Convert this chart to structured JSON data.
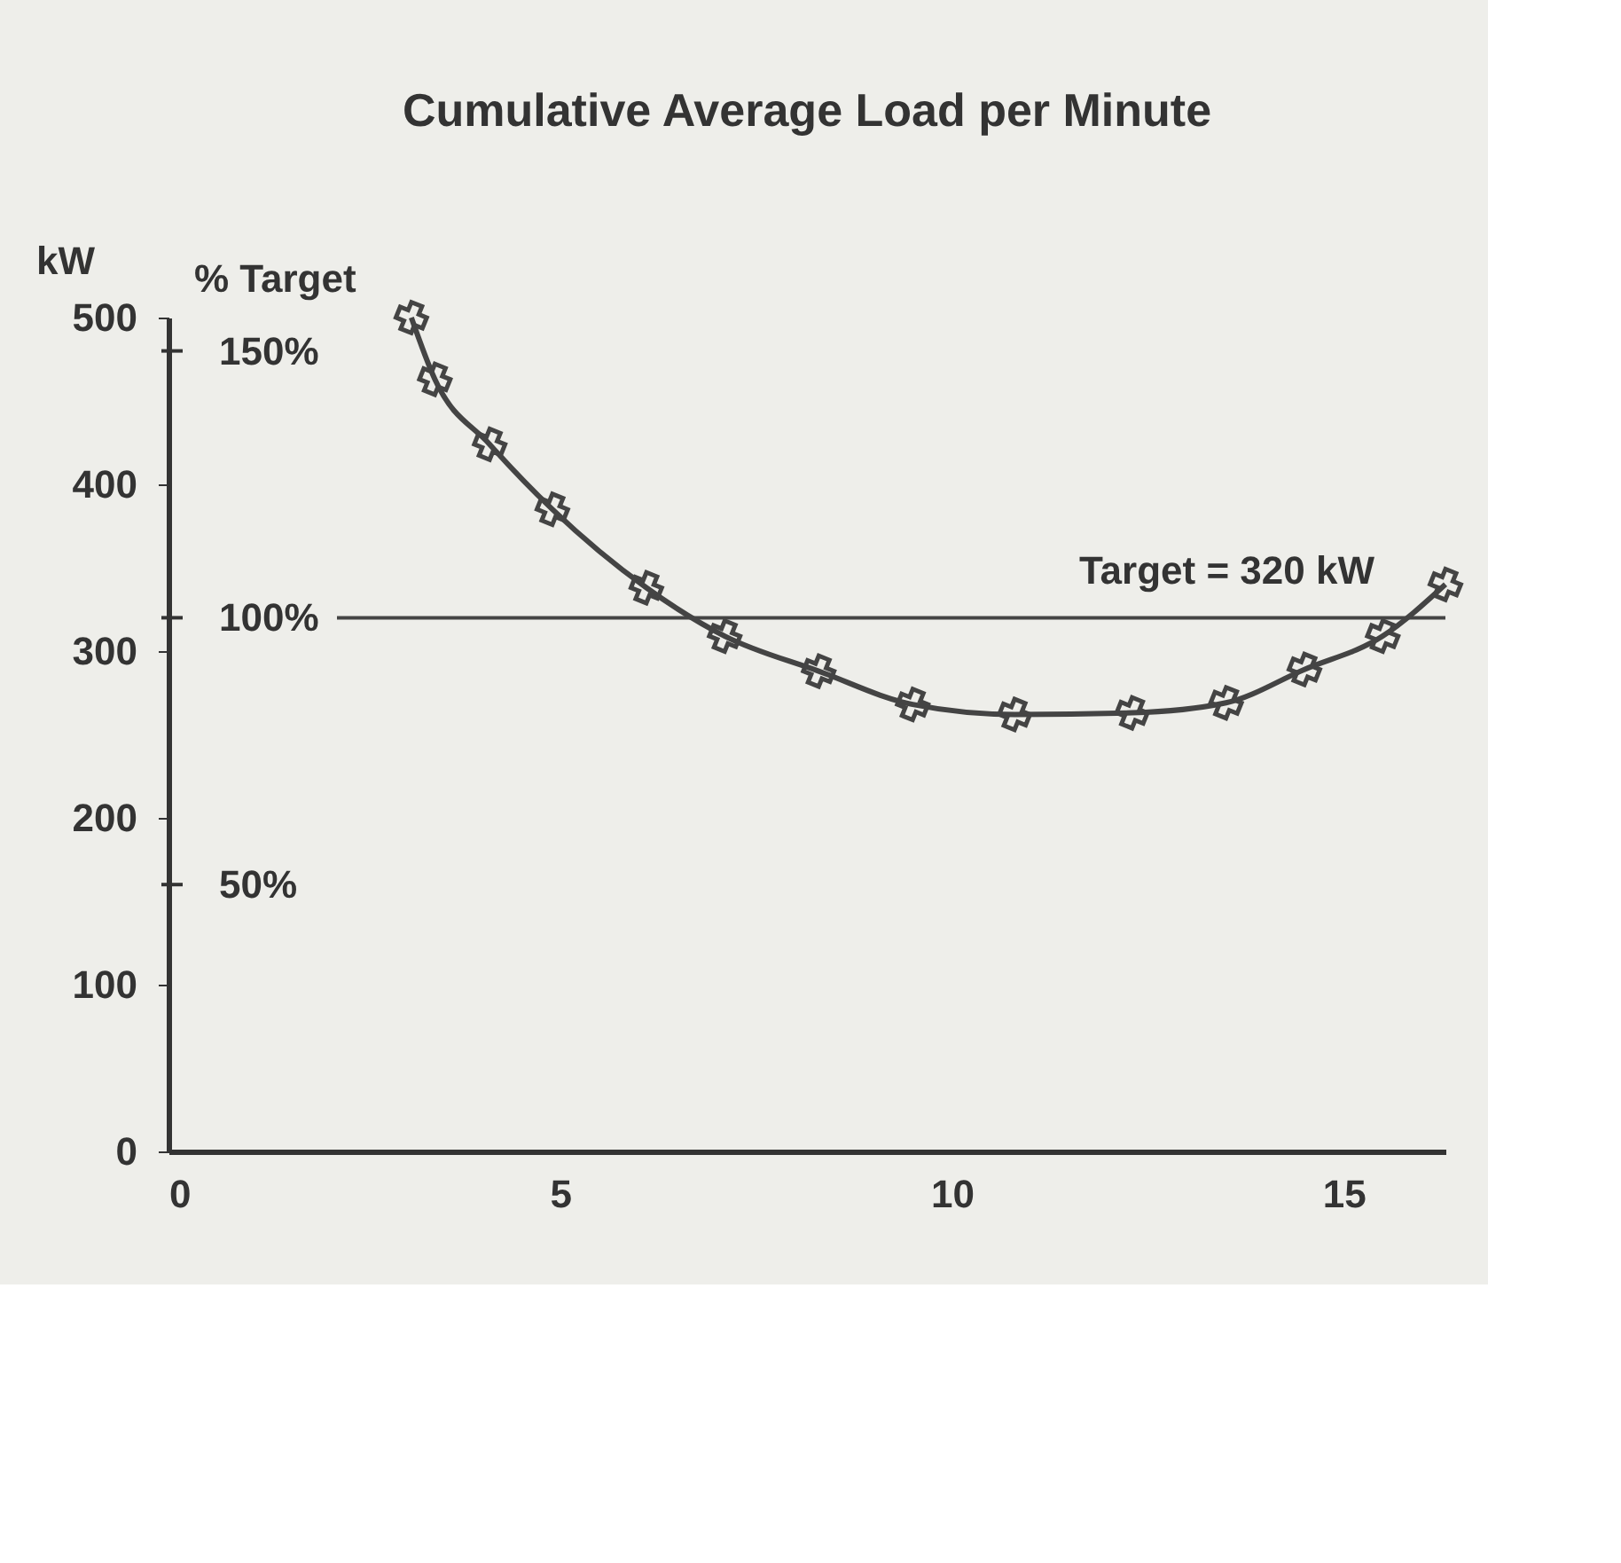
{
  "chart_data": {
    "type": "line",
    "title": "Cumulative Average Load per Minute",
    "ylabel": "kW",
    "y2label": "% Target",
    "x": [
      3.1,
      3.4,
      4.1,
      4.9,
      6.1,
      7.1,
      8.3,
      9.5,
      10.8,
      12.3,
      13.5,
      14.5,
      15.5,
      16.3
    ],
    "series": [
      {
        "color": "#444444",
        "values": [
          500,
          463,
          424,
          385,
          338,
          309,
          288,
          268,
          262,
          263,
          269,
          289,
          309,
          340
        ]
      }
    ],
    "xlim": [
      0,
      16.3
    ],
    "xticks": [
      0,
      5,
      10,
      15
    ],
    "ylim": [
      0,
      500
    ],
    "yticks": [
      0,
      100,
      200,
      300,
      400,
      500
    ],
    "y2lim": [
      0,
      156.25
    ],
    "y2ticks": [
      {
        "value": 50,
        "label": "50%"
      },
      {
        "value": 100,
        "label": "100%"
      },
      {
        "value": 150,
        "label": "150%"
      }
    ],
    "ref_lines": [
      {
        "axis": "y",
        "value": 320,
        "label": "Target = 320 kW",
        "color": "#444444"
      }
    ],
    "marker": "cross",
    "line_style": "solid",
    "grid": false,
    "legend": false
  }
}
